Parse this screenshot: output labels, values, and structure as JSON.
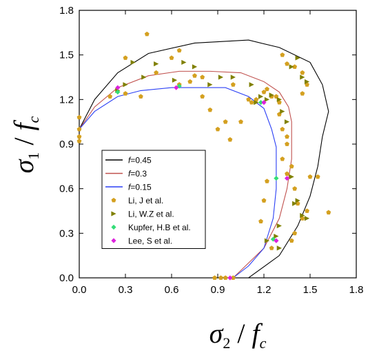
{
  "chart_data": {
    "type": "scatter",
    "xlabel": {
      "base": "σ",
      "sub": "2",
      "sep": " / ",
      "f": "f",
      "fsub": "c"
    },
    "ylabel": {
      "base": "σ",
      "sub": "1",
      "sep": " / ",
      "f": "f",
      "fsub": "c"
    },
    "xlim": [
      0,
      1.8
    ],
    "ylim": [
      0,
      1.8
    ],
    "xticks": [
      "0.0",
      "0.3",
      "0.6",
      "0.9",
      "1.2",
      "1.5",
      "1.8"
    ],
    "yticks": [
      "0.0",
      "0.3",
      "0.6",
      "0.9",
      "1.2",
      "1.5",
      "1.8"
    ],
    "legend_position": "bottom-left",
    "series": [
      {
        "name_prefix": "f",
        "name_value": "=0.45",
        "kind": "line",
        "color": "#000000",
        "points": [
          [
            0,
            1.0
          ],
          [
            0.1,
            1.2
          ],
          [
            0.25,
            1.38
          ],
          [
            0.45,
            1.51
          ],
          [
            0.75,
            1.58
          ],
          [
            1.1,
            1.6
          ],
          [
            1.3,
            1.55
          ],
          [
            1.5,
            1.45
          ],
          [
            1.58,
            1.3
          ],
          [
            1.62,
            1.12
          ],
          [
            1.58,
            0.95
          ],
          [
            1.55,
            0.75
          ],
          [
            1.5,
            0.55
          ],
          [
            1.42,
            0.35
          ],
          [
            1.3,
            0.15
          ],
          [
            1.1,
            0.0
          ],
          [
            1.0,
            0.0
          ]
        ]
      },
      {
        "name_prefix": "f",
        "name_value": "=0.3",
        "kind": "line",
        "color": "#c0504d",
        "points": [
          [
            0,
            1.0
          ],
          [
            0.1,
            1.15
          ],
          [
            0.25,
            1.28
          ],
          [
            0.45,
            1.36
          ],
          [
            0.65,
            1.39
          ],
          [
            0.85,
            1.39
          ],
          [
            1.05,
            1.38
          ],
          [
            1.2,
            1.32
          ],
          [
            1.3,
            1.25
          ],
          [
            1.36,
            1.15
          ],
          [
            1.38,
            1.05
          ],
          [
            1.38,
            0.9
          ],
          [
            1.38,
            0.8
          ],
          [
            1.35,
            0.6
          ],
          [
            1.3,
            0.4
          ],
          [
            1.2,
            0.2
          ],
          [
            1.05,
            0.05
          ],
          [
            1.0,
            0.0
          ]
        ]
      },
      {
        "name_prefix": "f",
        "name_value": "=0.15",
        "kind": "line",
        "color": "#2a3ff5",
        "points": [
          [
            0,
            1.0
          ],
          [
            0.1,
            1.12
          ],
          [
            0.25,
            1.22
          ],
          [
            0.4,
            1.26
          ],
          [
            0.6,
            1.28
          ],
          [
            0.95,
            1.28
          ],
          [
            1.1,
            1.22
          ],
          [
            1.2,
            1.14
          ],
          [
            1.25,
            1.0
          ],
          [
            1.28,
            0.88
          ],
          [
            1.28,
            0.6
          ],
          [
            1.26,
            0.4
          ],
          [
            1.2,
            0.2
          ],
          [
            1.1,
            0.08
          ],
          [
            1.0,
            0.0
          ],
          [
            0.98,
            0.0
          ]
        ]
      },
      {
        "name": "Li, J et al.",
        "kind": "scatter",
        "marker": "pentagon",
        "color": "#d4a020",
        "points": [
          [
            0.0,
            1.0
          ],
          [
            0.0,
            1.08
          ],
          [
            0.0,
            0.95
          ],
          [
            0.0,
            0.92
          ],
          [
            0.2,
            1.22
          ],
          [
            0.3,
            1.24
          ],
          [
            0.3,
            1.48
          ],
          [
            0.4,
            1.22
          ],
          [
            0.44,
            1.64
          ],
          [
            0.5,
            1.38
          ],
          [
            0.6,
            1.48
          ],
          [
            0.65,
            1.53
          ],
          [
            0.65,
            1.3
          ],
          [
            0.72,
            1.32
          ],
          [
            0.75,
            1.36
          ],
          [
            0.8,
            1.35
          ],
          [
            0.8,
            1.22
          ],
          [
            0.85,
            1.13
          ],
          [
            0.9,
            1.0
          ],
          [
            0.95,
            1.05
          ],
          [
            0.98,
            0.93
          ],
          [
            1.0,
            1.3
          ],
          [
            1.05,
            1.05
          ],
          [
            1.1,
            1.2
          ],
          [
            1.12,
            1.18
          ],
          [
            1.15,
            1.2
          ],
          [
            1.2,
            1.25
          ],
          [
            1.22,
            1.27
          ],
          [
            1.25,
            1.22
          ],
          [
            1.28,
            1.22
          ],
          [
            1.3,
            1.18
          ],
          [
            1.3,
            1.1
          ],
          [
            1.32,
            1.0
          ],
          [
            1.35,
            0.95
          ],
          [
            1.35,
            0.9
          ],
          [
            1.32,
            0.8
          ],
          [
            1.35,
            0.7
          ],
          [
            1.38,
            0.75
          ],
          [
            1.4,
            0.6
          ],
          [
            1.42,
            0.5
          ],
          [
            1.45,
            0.4
          ],
          [
            1.4,
            0.3
          ],
          [
            1.38,
            0.25
          ],
          [
            1.32,
            1.5
          ],
          [
            1.35,
            1.44
          ],
          [
            1.4,
            1.42
          ],
          [
            1.45,
            1.38
          ],
          [
            1.48,
            1.3
          ],
          [
            1.45,
            1.24
          ],
          [
            1.5,
            0.68
          ],
          [
            1.48,
            0.45
          ],
          [
            1.55,
            0.68
          ],
          [
            1.62,
            0.44
          ],
          [
            1.25,
            0.2
          ],
          [
            1.2,
            0.52
          ],
          [
            1.22,
            0.65
          ],
          [
            1.18,
            0.38
          ],
          [
            0.92,
            0.0
          ],
          [
            0.95,
            0.0
          ],
          [
            1.0,
            0.0
          ],
          [
            0.88,
            0.0
          ]
        ]
      },
      {
        "name": "Li, W.Z et al.",
        "kind": "scatter",
        "marker": "triangle-right",
        "color": "#808000",
        "points": [
          [
            0.25,
            1.26
          ],
          [
            0.3,
            1.3
          ],
          [
            0.35,
            1.45
          ],
          [
            0.42,
            1.35
          ],
          [
            0.5,
            1.44
          ],
          [
            0.62,
            1.33
          ],
          [
            0.68,
            1.45
          ],
          [
            0.75,
            1.42
          ],
          [
            0.85,
            1.3
          ],
          [
            0.92,
            1.35
          ],
          [
            1.0,
            1.35
          ],
          [
            1.12,
            1.3
          ],
          [
            1.15,
            1.18
          ],
          [
            1.18,
            1.22
          ],
          [
            1.22,
            1.2
          ],
          [
            1.25,
            1.23
          ],
          [
            1.3,
            1.2
          ],
          [
            1.32,
            1.12
          ],
          [
            1.35,
            1.05
          ],
          [
            1.38,
            1.42
          ],
          [
            1.42,
            1.48
          ],
          [
            1.45,
            1.35
          ],
          [
            1.48,
            1.32
          ],
          [
            1.38,
            0.68
          ],
          [
            1.4,
            0.5
          ],
          [
            1.42,
            0.52
          ],
          [
            1.45,
            0.42
          ],
          [
            1.48,
            0.4
          ],
          [
            1.3,
            0.35
          ],
          [
            1.28,
            0.28
          ],
          [
            1.22,
            0.25
          ],
          [
            1.3,
            0.2
          ]
        ]
      },
      {
        "name": "Kupfer, H.B et al.",
        "kind": "scatter",
        "marker": "diamond",
        "color": "#33dd77",
        "points": [
          [
            0.25,
            1.25
          ],
          [
            0.65,
            1.29
          ],
          [
            1.18,
            1.18
          ],
          [
            1.28,
            0.67
          ],
          [
            1.26,
            0.26
          ]
        ]
      },
      {
        "name": "Lee, S et al.",
        "kind": "scatter",
        "marker": "diamond",
        "color": "#dd22dd",
        "points": [
          [
            0.25,
            1.28
          ],
          [
            0.63,
            1.28
          ],
          [
            1.2,
            1.18
          ],
          [
            1.35,
            0.67
          ],
          [
            1.28,
            0.25
          ],
          [
            0.98,
            0.0
          ]
        ]
      }
    ]
  }
}
